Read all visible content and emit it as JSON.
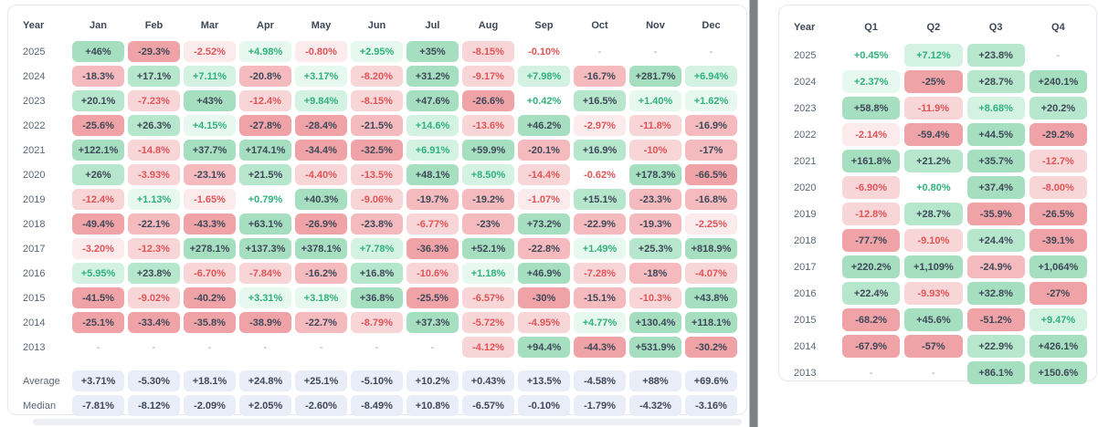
{
  "colors": {
    "page_background": "#ffffff",
    "panel_border": "#e5e8ee",
    "dark_value_text": "#3e4858",
    "green_text": "#2fb27c",
    "red_text": "#e25356",
    "green_bg_strong": "#a6dfc0",
    "green_bg_medium": "#b6e6cb",
    "green_bg_light": "#d4f2e2",
    "green_bg_faint": "#e6f8ef",
    "red_bg_strong": "#f0a3a7",
    "red_bg_medium": "#f4babd",
    "red_bg_light": "#f8d6d8",
    "red_bg_faint": "#fcebec",
    "summary_bg": "#e9edf7",
    "year_label_text": "#5c6675",
    "header_text": "#3c4656",
    "missing_dash_text": "#939cab",
    "vertical_scrollbar": "#7d8084",
    "horizontal_scrollbar": "#edeff4"
  },
  "chart_data": [
    {
      "type": "heatmap",
      "title": "Monthly returns heatmap",
      "columns": [
        "Year",
        "Jan",
        "Feb",
        "Mar",
        "Apr",
        "May",
        "Jun",
        "Jul",
        "Aug",
        "Sep",
        "Oct",
        "Nov",
        "Dec"
      ],
      "rows": [
        {
          "year": "2025",
          "values": [
            "+46%",
            "-29.3%",
            "-2.52%",
            "+4.98%",
            "-0.80%",
            "+2.95%",
            "+35%",
            "-8.15%",
            "-0.10%",
            "-",
            "-",
            "-"
          ]
        },
        {
          "year": "2024",
          "values": [
            "-18.3%",
            "+17.1%",
            "+7.11%",
            "-20.8%",
            "+3.17%",
            "-8.20%",
            "+31.2%",
            "-9.17%",
            "+7.98%",
            "-16.7%",
            "+281.7%",
            "+6.94%"
          ]
        },
        {
          "year": "2023",
          "values": [
            "+20.1%",
            "-7.23%",
            "+43%",
            "-12.4%",
            "+9.84%",
            "-8.15%",
            "+47.6%",
            "-26.6%",
            "+0.42%",
            "+16.5%",
            "+1.40%",
            "+1.62%"
          ]
        },
        {
          "year": "2022",
          "values": [
            "-25.6%",
            "+26.3%",
            "+4.15%",
            "-27.8%",
            "-28.4%",
            "-21.5%",
            "+14.6%",
            "-13.6%",
            "+46.2%",
            "-2.97%",
            "-11.8%",
            "-16.9%"
          ]
        },
        {
          "year": "2021",
          "values": [
            "+122.1%",
            "-14.8%",
            "+37.7%",
            "+174.1%",
            "-34.4%",
            "-32.5%",
            "+6.91%",
            "+59.9%",
            "-20.1%",
            "+16.9%",
            "-10%",
            "-17%"
          ]
        },
        {
          "year": "2020",
          "values": [
            "+26%",
            "-3.93%",
            "-23.1%",
            "+21.5%",
            "-4.40%",
            "-13.5%",
            "+48.1%",
            "+8.50%",
            "-14.4%",
            "-0.62%",
            "+178.3%",
            "-66.5%"
          ]
        },
        {
          "year": "2019",
          "values": [
            "-12.4%",
            "+1.13%",
            "-1.65%",
            "+0.79%",
            "+40.3%",
            "-9.06%",
            "-19.7%",
            "-19.2%",
            "-1.07%",
            "+15.1%",
            "-23.3%",
            "-16.8%"
          ]
        },
        {
          "year": "2018",
          "values": [
            "-49.4%",
            "-22.1%",
            "-43.3%",
            "+63.1%",
            "-26.9%",
            "-23.8%",
            "-6.77%",
            "-23%",
            "+73.2%",
            "-22.9%",
            "-19.3%",
            "-2.25%"
          ]
        },
        {
          "year": "2017",
          "values": [
            "-3.20%",
            "-12.3%",
            "+278.1%",
            "+137.3%",
            "+378.1%",
            "+7.78%",
            "-36.3%",
            "+52.1%",
            "-22.8%",
            "+1.49%",
            "+25.3%",
            "+818.9%"
          ]
        },
        {
          "year": "2016",
          "values": [
            "+5.95%",
            "+23.8%",
            "-6.70%",
            "-7.84%",
            "-16.2%",
            "+16.8%",
            "-10.6%",
            "+1.18%",
            "+46.9%",
            "-7.28%",
            "-18%",
            "-4.07%"
          ]
        },
        {
          "year": "2015",
          "values": [
            "-41.5%",
            "-9.02%",
            "-40.2%",
            "+3.31%",
            "+3.18%",
            "+36.8%",
            "-25.5%",
            "-6.57%",
            "-30%",
            "-15.1%",
            "-10.3%",
            "+43.8%"
          ]
        },
        {
          "year": "2014",
          "values": [
            "-25.1%",
            "-33.4%",
            "-35.8%",
            "-38.9%",
            "-22.7%",
            "-8.79%",
            "+37.3%",
            "-5.72%",
            "-4.95%",
            "+4.77%",
            "+130.4%",
            "+118.1%"
          ]
        },
        {
          "year": "2013",
          "values": [
            "-",
            "-",
            "-",
            "-",
            "-",
            "-",
            "-",
            "-4.12%",
            "+94.4%",
            "-44.3%",
            "+531.9%",
            "-30.2%"
          ]
        }
      ],
      "summary_rows": [
        {
          "label": "Average",
          "values": [
            "+3.71%",
            "-5.30%",
            "+18.1%",
            "+24.8%",
            "+25.1%",
            "-5.10%",
            "+10.2%",
            "+0.43%",
            "+13.5%",
            "-4.58%",
            "+88%",
            "+69.6%"
          ]
        },
        {
          "label": "Median",
          "values": [
            "-7.81%",
            "-8.12%",
            "-2.09%",
            "+2.05%",
            "-2.60%",
            "-8.49%",
            "+10.8%",
            "-6.57%",
            "-0.10%",
            "-1.79%",
            "-4.32%",
            "-3.16%"
          ]
        }
      ]
    },
    {
      "type": "heatmap",
      "title": "Quarterly returns heatmap",
      "columns": [
        "Year",
        "Q1",
        "Q2",
        "Q3",
        "Q4"
      ],
      "rows": [
        {
          "year": "2025",
          "values": [
            "+0.45%",
            "+7.12%",
            "+23.8%",
            "-"
          ]
        },
        {
          "year": "2024",
          "values": [
            "+2.37%",
            "-25%",
            "+28.7%",
            "+240.1%"
          ]
        },
        {
          "year": "2023",
          "values": [
            "+58.8%",
            "-11.9%",
            "+8.68%",
            "+20.2%"
          ]
        },
        {
          "year": "2022",
          "values": [
            "-2.14%",
            "-59.4%",
            "+44.5%",
            "-29.2%"
          ]
        },
        {
          "year": "2021",
          "values": [
            "+161.8%",
            "+21.2%",
            "+35.7%",
            "-12.7%"
          ]
        },
        {
          "year": "2020",
          "values": [
            "-6.90%",
            "+0.80%",
            "+37.4%",
            "-8.00%"
          ]
        },
        {
          "year": "2019",
          "values": [
            "-12.8%",
            "+28.7%",
            "-35.9%",
            "-26.5%"
          ]
        },
        {
          "year": "2018",
          "values": [
            "-77.7%",
            "-9.10%",
            "+24.4%",
            "-39.1%"
          ]
        },
        {
          "year": "2017",
          "values": [
            "+220.2%",
            "+1,109%",
            "-24.9%",
            "+1,064%"
          ]
        },
        {
          "year": "2016",
          "values": [
            "+22.4%",
            "-9.93%",
            "+32.8%",
            "-27%"
          ]
        },
        {
          "year": "2015",
          "values": [
            "-68.2%",
            "+45.6%",
            "-51.2%",
            "+9.47%"
          ]
        },
        {
          "year": "2014",
          "values": [
            "-67.9%",
            "-57%",
            "+22.9%",
            "+426.1%"
          ]
        },
        {
          "year": "2013",
          "values": [
            "-",
            "-",
            "+86.1%",
            "+150.6%"
          ]
        }
      ],
      "summary_rows": []
    }
  ]
}
